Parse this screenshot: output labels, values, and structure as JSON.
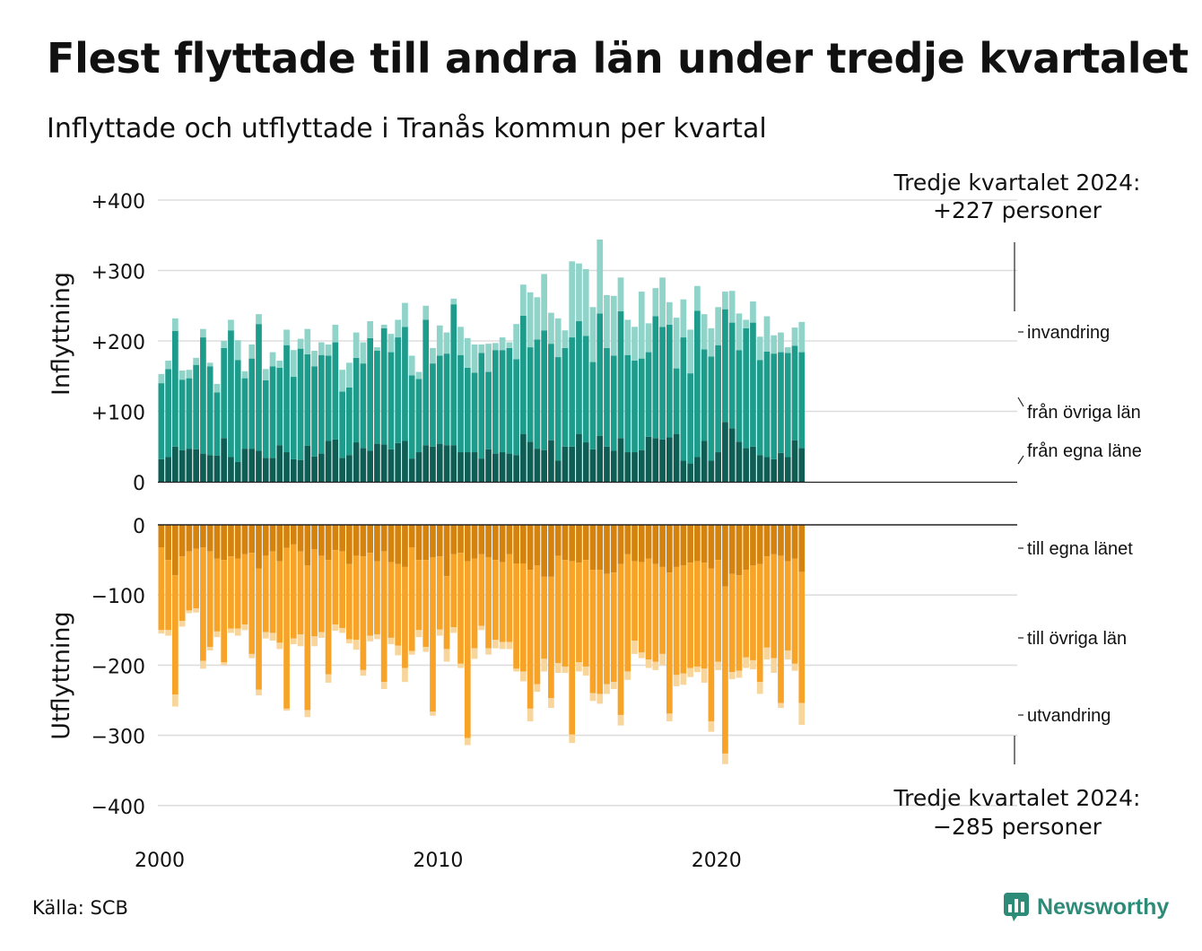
{
  "title": "Flest flyttade till andra län under tredje kvartalet",
  "subtitle": "Inflyttade och utflyttade i Tranås kommun per kvartal",
  "source": "Källa: SCB",
  "brand": "Newsworthy",
  "colors": {
    "in_local": "#0f5e55",
    "in_other": "#1d9b8b",
    "in_immigration": "#8fd3c9",
    "out_local": "#d4830f",
    "out_other": "#f6a327",
    "out_emigration": "#f8d59a",
    "grid": "#dddddd",
    "brand": "#2e8b78"
  },
  "chart_data": [
    {
      "type": "bar",
      "stacked": true,
      "panel": "top",
      "ylabel": "Inflyttning",
      "yticks": [
        "+400",
        "+300",
        "+200",
        "+100",
        "0"
      ],
      "ylim": [
        0,
        400
      ],
      "xticks": [
        "2000",
        "2010",
        "2020"
      ],
      "x_start": "2000 Q1",
      "x_end": "2024 Q3",
      "annotation": {
        "line1": "Tredje kvartalet 2024:",
        "line2": "+227 personer"
      },
      "grid": true,
      "series": [
        {
          "name": "från egna läne",
          "values": [
            32,
            35,
            50,
            45,
            47,
            46,
            40,
            38,
            37,
            62,
            35,
            28,
            47,
            47,
            44,
            34,
            34,
            52,
            42,
            32,
            31,
            51,
            36,
            40,
            58,
            60,
            34,
            38,
            56,
            48,
            44,
            54,
            53,
            46,
            55,
            58,
            33,
            42,
            52,
            50,
            54,
            52,
            52,
            42,
            42,
            42,
            33,
            46,
            40,
            42,
            40,
            38,
            68,
            57,
            47,
            45,
            59,
            30,
            50,
            50,
            68,
            56,
            46,
            65,
            50,
            44,
            62,
            42,
            42,
            45,
            64,
            62,
            60,
            63,
            68,
            30,
            26,
            35,
            58,
            30,
            42,
            85,
            76,
            57,
            48,
            50,
            38,
            35,
            32,
            41,
            35,
            59,
            48
          ]
        },
        {
          "name": "från övriga län",
          "values": [
            108,
            125,
            164,
            100,
            100,
            120,
            165,
            126,
            90,
            128,
            180,
            145,
            100,
            128,
            180,
            110,
            130,
            110,
            152,
            117,
            158,
            130,
            128,
            140,
            121,
            138,
            94,
            96,
            120,
            120,
            160,
            132,
            165,
            138,
            150,
            162,
            118,
            104,
            178,
            118,
            125,
            130,
            200,
            138,
            120,
            113,
            150,
            110,
            147,
            145,
            150,
            136,
            168,
            134,
            155,
            170,
            137,
            147,
            140,
            155,
            160,
            151,
            124,
            174,
            140,
            135,
            180,
            138,
            130,
            130,
            120,
            173,
            160,
            160,
            93,
            175,
            128,
            208,
            130,
            148,
            152,
            160,
            150,
            130,
            170,
            176,
            135,
            150,
            150,
            143,
            148,
            134,
            136
          ]
        },
        {
          "name": "invandring",
          "values": [
            13,
            12,
            18,
            13,
            12,
            10,
            12,
            5,
            12,
            10,
            15,
            28,
            10,
            20,
            14,
            16,
            20,
            10,
            22,
            38,
            14,
            36,
            22,
            18,
            16,
            25,
            31,
            35,
            36,
            30,
            24,
            5,
            5,
            26,
            25,
            34,
            28,
            10,
            20,
            22,
            43,
            30,
            8,
            40,
            42,
            40,
            12,
            40,
            10,
            18,
            8,
            50,
            44,
            78,
            60,
            80,
            44,
            55,
            25,
            108,
            82,
            95,
            78,
            105,
            75,
            85,
            48,
            50,
            48,
            95,
            41,
            40,
            70,
            32,
            72,
            54,
            62,
            35,
            50,
            40,
            54,
            25,
            45,
            52,
            12,
            30,
            33,
            50,
            26,
            28,
            8,
            26,
            43
          ]
        }
      ]
    },
    {
      "type": "bar",
      "stacked": true,
      "panel": "bottom",
      "ylabel": "Utflyttning",
      "yticks": [
        "0",
        "−100",
        "−200",
        "−300",
        "−400"
      ],
      "ylim": [
        -400,
        0
      ],
      "xticks": [
        "2000",
        "2010",
        "2020"
      ],
      "x_start": "2000 Q1",
      "x_end": "2024 Q3",
      "annotation": {
        "line1": "Tredje kvartalet 2024:",
        "line2": "−285 personer"
      },
      "grid": true,
      "series": [
        {
          "name": "till egna länet",
          "values": [
            -32,
            -50,
            -72,
            -45,
            -38,
            -34,
            -32,
            -38,
            -48,
            -50,
            -45,
            -48,
            -42,
            -40,
            -62,
            -44,
            -38,
            -52,
            -33,
            -28,
            -38,
            -58,
            -35,
            -44,
            -50,
            -36,
            -38,
            -56,
            -44,
            -45,
            -40,
            -52,
            -38,
            -53,
            -56,
            -60,
            -32,
            -50,
            -50,
            -46,
            -45,
            -73,
            -42,
            -40,
            -52,
            -48,
            -42,
            -46,
            -50,
            -53,
            -42,
            -55,
            -55,
            -64,
            -58,
            -74,
            -74,
            -44,
            -50,
            -52,
            -54,
            -50,
            -64,
            -64,
            -70,
            -68,
            -56,
            -42,
            -52,
            -53,
            -48,
            -56,
            -60,
            -68,
            -60,
            -58,
            -54,
            -52,
            -54,
            -62,
            -50,
            -88,
            -70,
            -72,
            -64,
            -58,
            -56,
            -45,
            -42,
            -44,
            -52,
            -48,
            -67
          ]
        },
        {
          "name": "till övriga län",
          "values": [
            -118,
            -100,
            -170,
            -92,
            -84,
            -85,
            -162,
            -136,
            -104,
            -146,
            -103,
            -100,
            -100,
            -144,
            -173,
            -109,
            -116,
            -116,
            -229,
            -134,
            -118,
            -206,
            -124,
            -109,
            -163,
            -106,
            -109,
            -107,
            -120,
            -162,
            -118,
            -104,
            -186,
            -108,
            -116,
            -144,
            -148,
            -100,
            -124,
            -220,
            -104,
            -104,
            -104,
            -158,
            -252,
            -128,
            -102,
            -130,
            -114,
            -114,
            -125,
            -150,
            -154,
            -198,
            -169,
            -117,
            -173,
            -153,
            -152,
            -247,
            -142,
            -152,
            -176,
            -177,
            -157,
            -156,
            -215,
            -167,
            -113,
            -129,
            -144,
            -139,
            -124,
            -201,
            -154,
            -154,
            -150,
            -150,
            -151,
            -218,
            -145,
            -238,
            -140,
            -136,
            -125,
            -135,
            -168,
            -130,
            -148,
            -210,
            -127,
            -150,
            -187
          ]
        },
        {
          "name": "utvandring",
          "values": [
            -5,
            -8,
            -17,
            -8,
            -4,
            -6,
            -11,
            -5,
            -8,
            -4,
            -6,
            -10,
            -8,
            -6,
            -8,
            -9,
            -11,
            -9,
            -3,
            -8,
            -17,
            -10,
            -14,
            -8,
            -12,
            -9,
            -7,
            -6,
            -14,
            -8,
            -8,
            -7,
            -10,
            -9,
            -14,
            -20,
            -5,
            -10,
            -7,
            -6,
            -9,
            -18,
            -8,
            -6,
            -10,
            -15,
            -6,
            -9,
            -12,
            -10,
            -10,
            -4,
            -14,
            -18,
            -11,
            -18,
            -14,
            -14,
            -9,
            -12,
            -13,
            -13,
            -11,
            -14,
            -14,
            -10,
            -15,
            -12,
            -19,
            -8,
            -12,
            -12,
            -16,
            -11,
            -16,
            -16,
            -13,
            -8,
            -20,
            -15,
            -12,
            -15,
            -10,
            -10,
            -15,
            -13,
            -17,
            -17,
            -21,
            -7,
            -13,
            -10,
            -31
          ]
        }
      ]
    }
  ]
}
